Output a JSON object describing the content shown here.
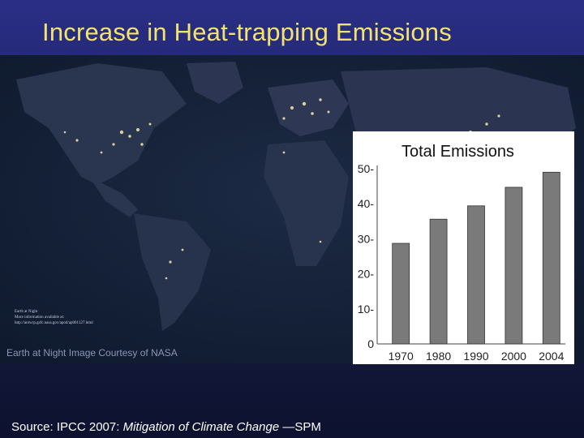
{
  "slide": {
    "title": "Increase in Heat-trapping Emissions",
    "map_credit": "Earth at Night Image Courtesy of NASA",
    "map_small_text": "Earth at Night\nMore information available at:\nhttp://antwrp.gsfc.nasa.gov/apod/ap001127.html",
    "source_prefix": "Source: IPCC 2007: ",
    "source_title": "Mitigation of Climate Change",
    "source_suffix": " —SPM"
  },
  "colors": {
    "title_text": "#f2e36e",
    "title_band": "#2a2f86",
    "bar_fill": "#7a7a7a",
    "chart_bg": "#ffffff"
  },
  "chart_data": {
    "type": "bar",
    "title": "Total Emissions",
    "categories": [
      "1970",
      "1980",
      "1990",
      "2000",
      "2004"
    ],
    "values": [
      28.7,
      35.6,
      39.4,
      44.7,
      49.0
    ],
    "ylim": [
      0,
      50
    ],
    "yticks": [
      0,
      10,
      20,
      30,
      40,
      50
    ],
    "ytick_labels": [
      "0",
      "10-",
      "20-",
      "30-",
      "40-",
      "50-"
    ],
    "xlabel": "",
    "ylabel": "",
    "grid": false
  }
}
